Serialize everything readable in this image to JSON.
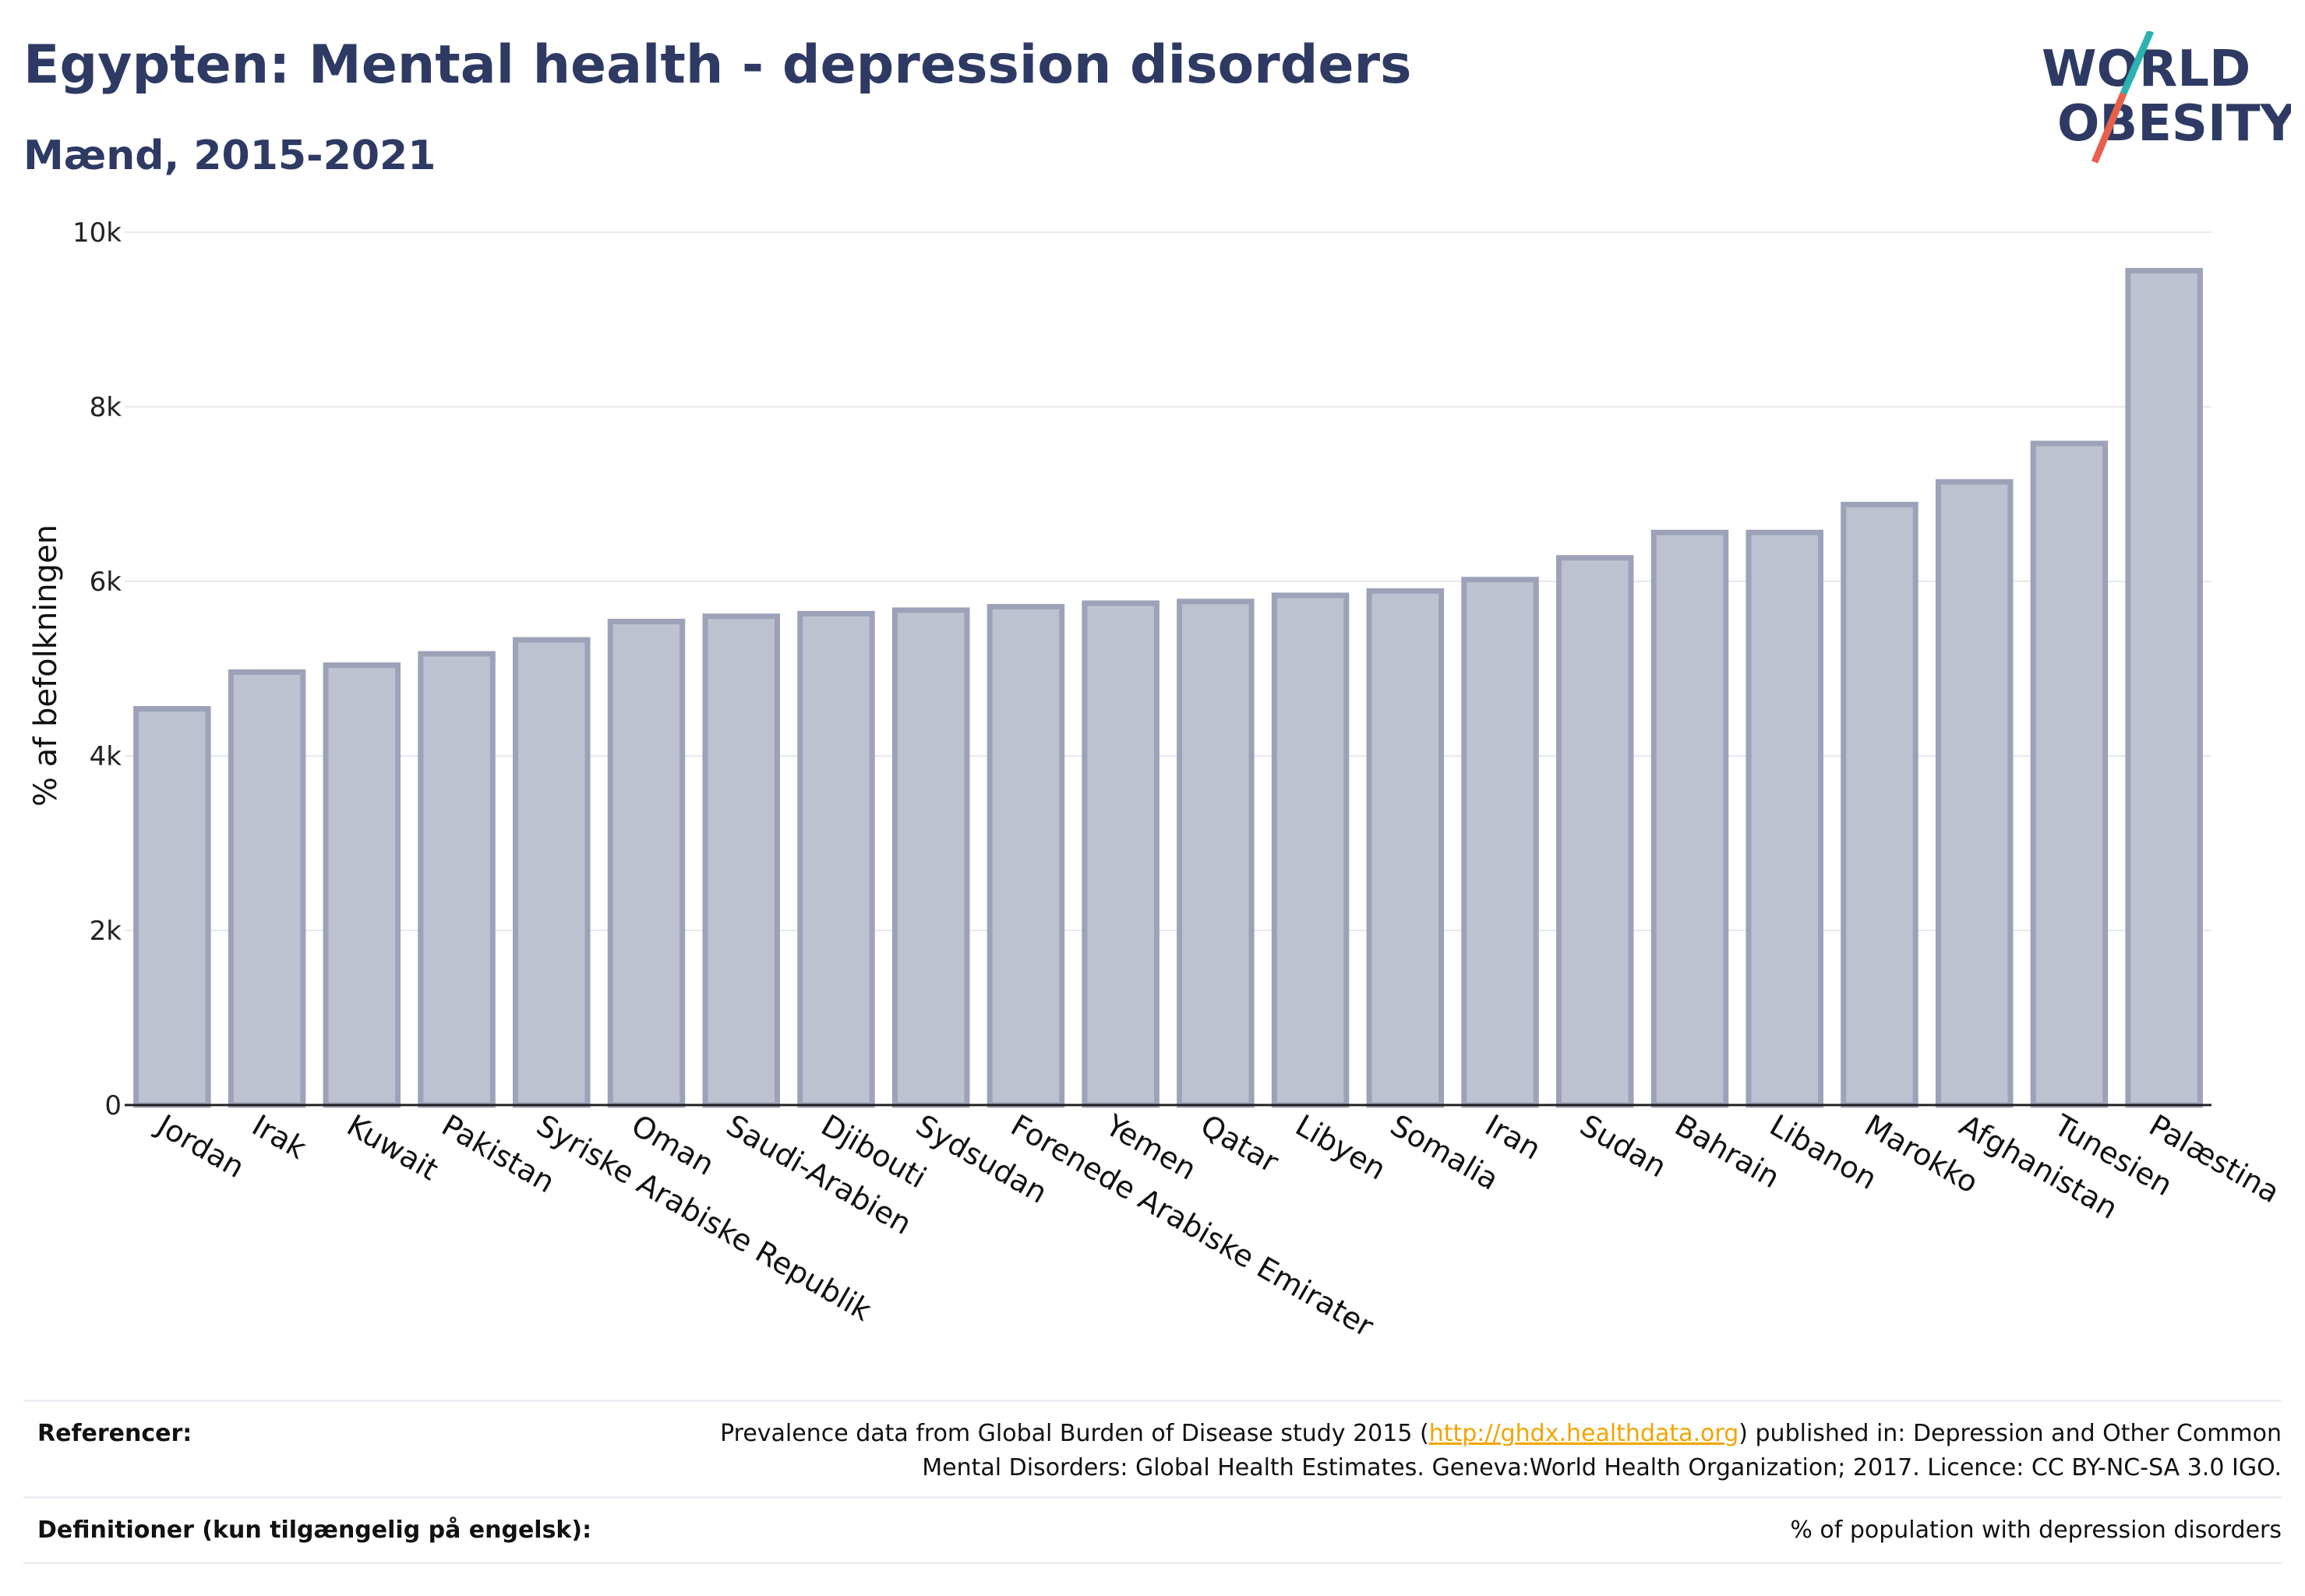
{
  "header": {
    "title": "Egypten: Mental health - depression disorders",
    "subtitle": "Mænd, 2015-2021"
  },
  "logo": {
    "line1": "WORLD",
    "line2": "OBESITY",
    "text_color": "#2e3a63",
    "slash_colors": [
      "#2ab3b1",
      "#e8604c"
    ]
  },
  "chart_data": {
    "type": "bar",
    "title": "Egypten: Mental health - depression disorders",
    "subtitle": "Mænd, 2015-2021",
    "xlabel": "",
    "ylabel": "% af befolkningen",
    "ylim": [
      0,
      10000
    ],
    "yticks": [
      {
        "value": 0,
        "label": "0"
      },
      {
        "value": 2000,
        "label": "2k"
      },
      {
        "value": 4000,
        "label": "4k"
      },
      {
        "value": 6000,
        "label": "6k"
      },
      {
        "value": 8000,
        "label": "8k"
      },
      {
        "value": 10000,
        "label": "10k"
      }
    ],
    "grid": true,
    "bar_color": "#bec1cf",
    "bar_edge_color": "#9da2b8",
    "categories": [
      "Jordan",
      "Irak",
      "Kuwait",
      "Pakistan",
      "Syriske Arabiske Republik",
      "Oman",
      "Saudi-Arabien",
      "Djibouti",
      "Sydsudan",
      "Forenede Arabiske Emirater",
      "Yemen",
      "Qatar",
      "Libyen",
      "Somalia",
      "Iran",
      "Sudan",
      "Bahrain",
      "Libanon",
      "Marokko",
      "Afghanistan",
      "Tunesien",
      "Palæstina"
    ],
    "values": [
      4540,
      4960,
      5040,
      5170,
      5330,
      5540,
      5600,
      5630,
      5670,
      5710,
      5750,
      5770,
      5840,
      5890,
      6020,
      6270,
      6560,
      6560,
      6880,
      7140,
      7580,
      9560
    ]
  },
  "footer": {
    "references_label": "Referencer:",
    "references_text_before": "Prevalence data from Global Burden of Disease study 2015 (",
    "references_link": "http://ghdx.healthdata.org",
    "references_text_after": ") published in: Depression and Other Common",
    "references_line2": "Mental Disorders: Global Health Estimates. Geneva:World Health Organization; 2017. Licence: CC BY-NC-SA 3.0 IGO.",
    "definitions_label": "Definitioner (kun tilgængelig på engelsk):",
    "definitions_text": "% of population with depression disorders"
  }
}
